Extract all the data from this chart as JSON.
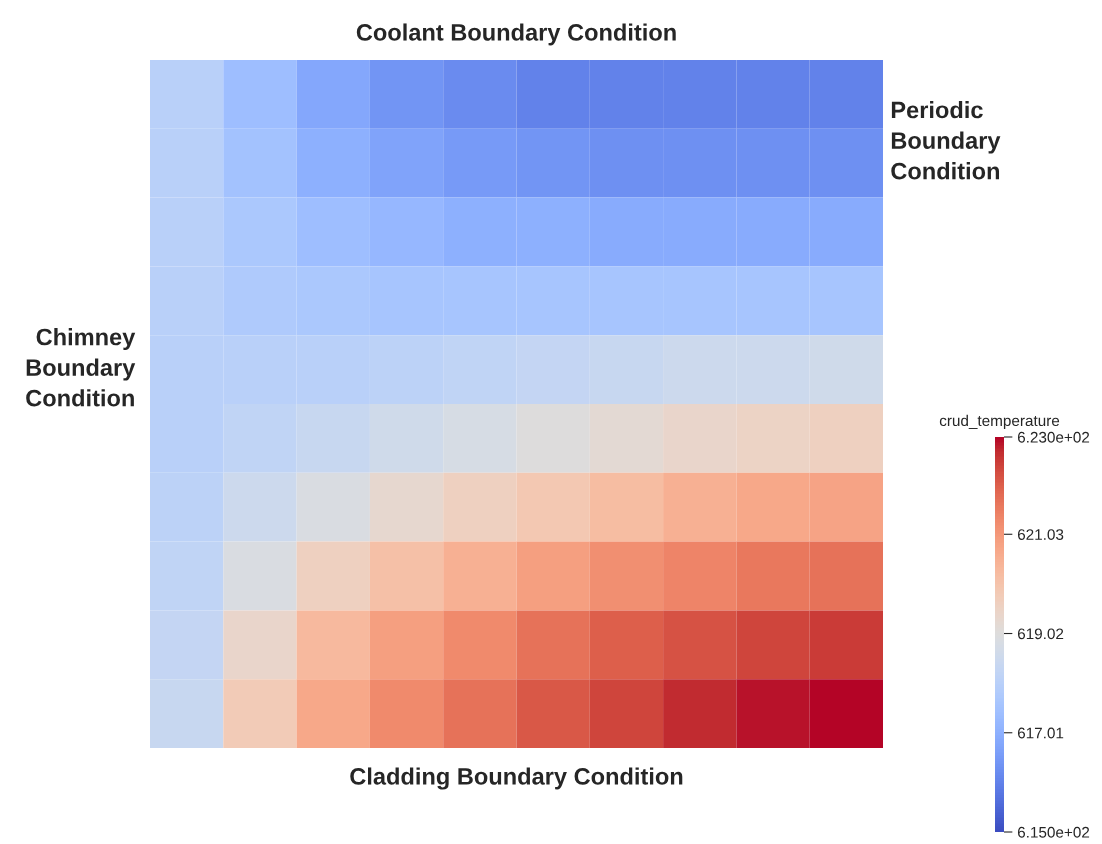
{
  "chart_data": {
    "type": "heatmap",
    "title": "Coolant Boundary Condition",
    "xlabel": "Cladding Boundary Condition",
    "ylabel": "Chimney\nBoundary\nCondition",
    "y2label": "Periodic\nBoundary\nCondition",
    "clabel": "crud_temperature",
    "categories": [
      null,
      null,
      null,
      null,
      null,
      null,
      null,
      null,
      null,
      null
    ],
    "y_categories": [
      null,
      null,
      null,
      null,
      null,
      null,
      null,
      null,
      null,
      null
    ],
    "cells": [
      [
        618.0,
        617.4,
        616.8,
        616.4,
        616.2,
        616.0,
        616.0,
        616.0,
        616.0,
        616.0
      ],
      [
        618.0,
        617.5,
        617.0,
        616.7,
        616.5,
        616.4,
        616.3,
        616.3,
        616.3,
        616.3
      ],
      [
        618.0,
        617.7,
        617.4,
        617.2,
        617.0,
        617.0,
        616.9,
        616.9,
        616.9,
        616.9
      ],
      [
        618.0,
        617.8,
        617.7,
        617.6,
        617.6,
        617.6,
        617.6,
        617.6,
        617.6,
        617.6
      ],
      [
        618.0,
        618.0,
        618.0,
        618.1,
        618.2,
        618.3,
        618.4,
        618.5,
        618.5,
        618.6
      ],
      [
        618.0,
        618.2,
        618.4,
        618.6,
        618.8,
        619.0,
        619.2,
        619.4,
        619.5,
        619.6
      ],
      [
        618.1,
        618.5,
        618.9,
        619.3,
        619.6,
        619.9,
        620.2,
        620.5,
        620.7,
        620.8
      ],
      [
        618.2,
        618.9,
        619.6,
        620.1,
        620.5,
        620.9,
        621.2,
        621.4,
        621.6,
        621.7
      ],
      [
        618.3,
        619.4,
        620.3,
        620.9,
        621.3,
        621.7,
        622.0,
        622.2,
        622.4,
        622.5
      ],
      [
        618.4,
        619.8,
        620.7,
        621.3,
        621.7,
        622.1,
        622.4,
        622.7,
        622.9,
        623.0
      ]
    ],
    "clim": [
      615,
      623
    ],
    "cticks": [
      {
        "value": 615,
        "label": "6.150e+02"
      },
      617.01,
      619.02,
      621.03,
      {
        "value": 623,
        "label": "6.230e+02"
      }
    ],
    "tick_labels": false
  }
}
